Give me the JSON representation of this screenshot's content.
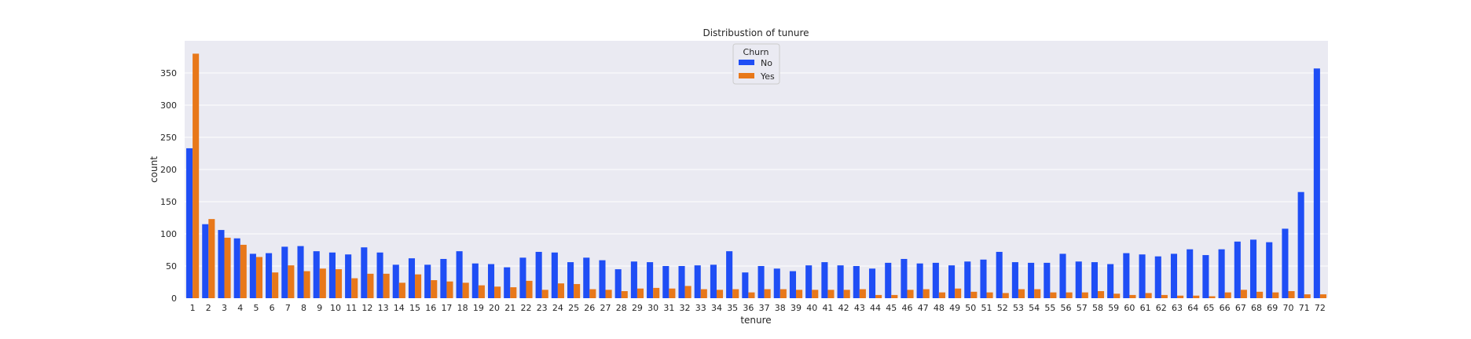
{
  "chart_data": {
    "type": "bar",
    "title": "Distribustion of tunure",
    "xlabel": "tenure",
    "ylabel": "count",
    "ylim": [
      0,
      400
    ],
    "yticks": [
      0,
      50,
      100,
      150,
      200,
      250,
      300,
      350
    ],
    "grid": true,
    "legend": {
      "title": "Churn",
      "placement": "top-center"
    },
    "categories": [
      "1",
      "2",
      "3",
      "4",
      "5",
      "6",
      "7",
      "8",
      "9",
      "10",
      "11",
      "12",
      "13",
      "14",
      "15",
      "16",
      "17",
      "18",
      "19",
      "20",
      "21",
      "22",
      "23",
      "24",
      "25",
      "26",
      "27",
      "28",
      "29",
      "30",
      "31",
      "32",
      "33",
      "34",
      "35",
      "36",
      "37",
      "38",
      "39",
      "40",
      "41",
      "42",
      "43",
      "44",
      "45",
      "46",
      "47",
      "48",
      "49",
      "50",
      "51",
      "52",
      "53",
      "54",
      "55",
      "56",
      "57",
      "58",
      "59",
      "60",
      "61",
      "62",
      "63",
      "64",
      "65",
      "66",
      "67",
      "68",
      "69",
      "70",
      "71",
      "72"
    ],
    "series": [
      {
        "name": "No",
        "color": "#1f4ef5",
        "values": [
          233,
          115,
          106,
          93,
          69,
          70,
          80,
          81,
          73,
          71,
          68,
          79,
          71,
          52,
          62,
          52,
          61,
          73,
          54,
          53,
          48,
          63,
          72,
          71,
          56,
          63,
          59,
          45,
          57,
          56,
          50,
          50,
          51,
          52,
          73,
          40,
          50,
          46,
          42,
          51,
          56,
          51,
          50,
          46,
          55,
          61,
          54,
          55,
          51,
          57,
          60,
          72,
          56,
          55,
          55,
          69,
          57,
          56,
          53,
          70,
          68,
          65,
          69,
          76,
          67,
          76,
          88,
          91,
          87,
          108,
          165,
          357
        ]
      },
      {
        "name": "Yes",
        "color": "#e8781a",
        "values": [
          380,
          123,
          94,
          83,
          64,
          40,
          51,
          42,
          46,
          45,
          31,
          38,
          38,
          24,
          37,
          28,
          26,
          24,
          20,
          18,
          17,
          27,
          13,
          23,
          22,
          14,
          13,
          11,
          15,
          16,
          15,
          19,
          14,
          13,
          14,
          9,
          14,
          14,
          13,
          13,
          13,
          13,
          14,
          5,
          5,
          13,
          14,
          9,
          15,
          10,
          9,
          8,
          14,
          14,
          9,
          9,
          9,
          11,
          7,
          5,
          8,
          5,
          4,
          4,
          3,
          9,
          13,
          10,
          9,
          11,
          6,
          6
        ]
      }
    ]
  }
}
